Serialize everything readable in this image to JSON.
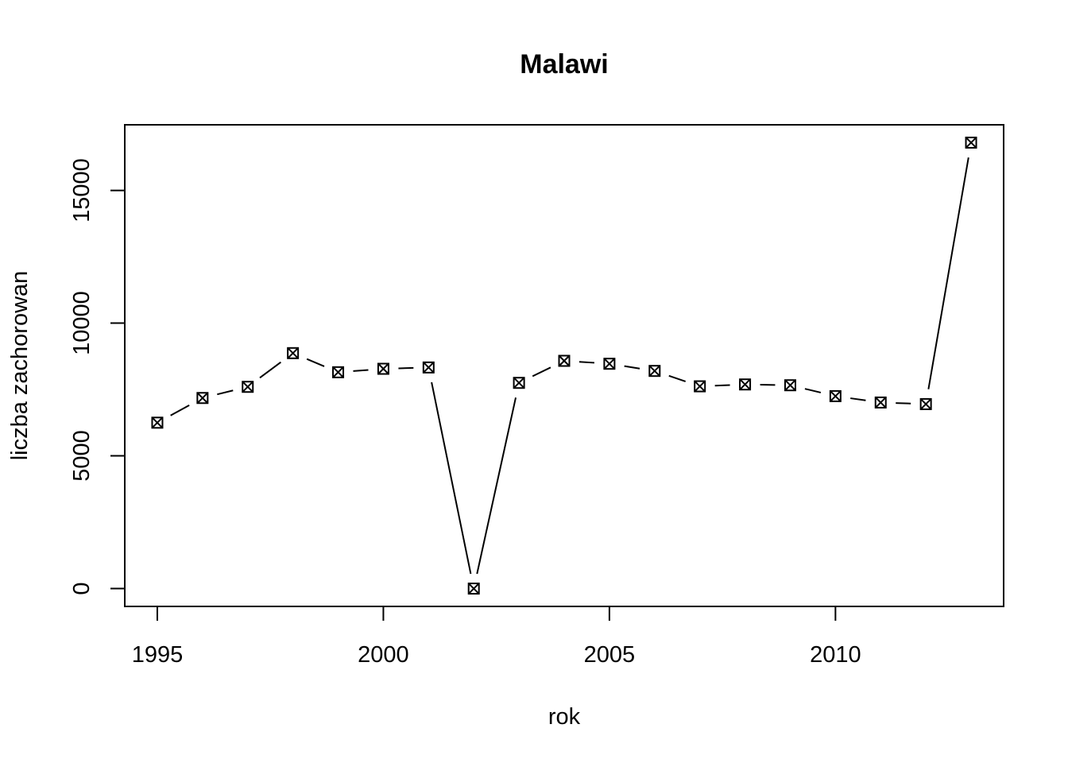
{
  "chart_data": {
    "type": "line",
    "title": "Malawi",
    "xlabel": "rok",
    "ylabel": "liczba zachorowan",
    "xlim": [
      1994.28,
      2013.72
    ],
    "ylim": [
      -672,
      17472
    ],
    "x_ticks": [
      1995,
      2000,
      2005,
      2010
    ],
    "y_ticks": [
      0,
      5000,
      10000,
      15000
    ],
    "grid": false,
    "marker": "square-with-x",
    "line_style": "gapped (type b)",
    "series": [
      {
        "x": [
          1995,
          1996,
          1997,
          1998,
          1999,
          2000,
          2001,
          2002,
          2003,
          2004,
          2005,
          2006,
          2007,
          2008,
          2009,
          2010,
          2011,
          2012,
          2013
        ],
        "y": [
          6250,
          7180,
          7600,
          8870,
          8150,
          8280,
          8330,
          0,
          7750,
          8580,
          8470,
          8200,
          7620,
          7690,
          7660,
          7250,
          7010,
          6950,
          16800
        ]
      }
    ]
  }
}
